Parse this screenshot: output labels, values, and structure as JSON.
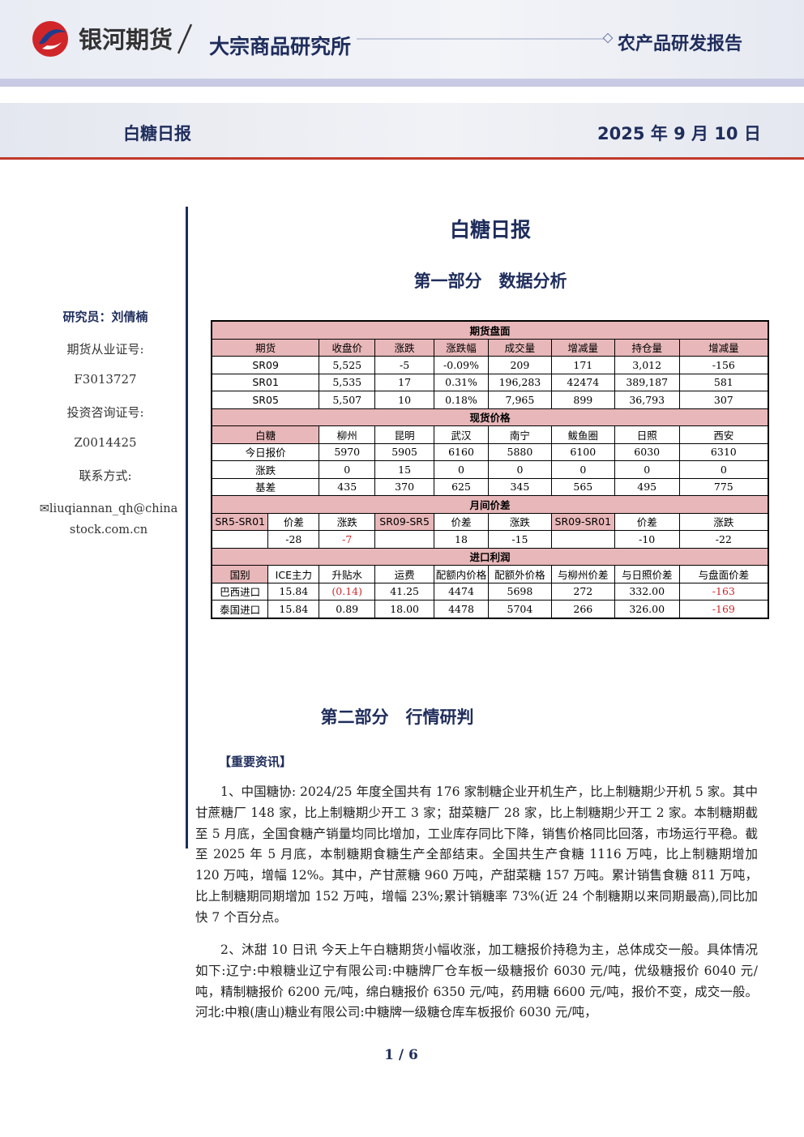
{
  "header": {
    "company": "银河期货",
    "institute": "大宗商品研究所",
    "report_type": "农产品研发报告",
    "report_name": "白糖日报",
    "date": "2025 年 9 月 10 日"
  },
  "sidebar": {
    "researcher": "研究员：刘倩楠",
    "futures_license_label": "期货从业证号:",
    "futures_license": "F3013727",
    "consult_license_label": "投资咨询证号:",
    "consult_license": "Z0014425",
    "contact_label": "联系方式:",
    "email": "liuqiannan_qh@chinastock.com.cn"
  },
  "main": {
    "title": "白糖日报",
    "part1": "第一部分　数据分析",
    "part2": "第二部分　行情研判",
    "news_header": "【重要资讯】",
    "paragraphs": [
      "1、中国糖协: 2024/25 年度全国共有 176 家制糖企业开机生产，比上制糖期少开机 5 家。其中甘蔗糖厂 148 家，比上制糖期少开工 3 家；甜菜糖厂 28 家，比上制糖期少开工 2 家。本制糖期截至 5 月底，全国食糖产销量均同比增加，工业库存同比下降，销售价格同比回落，市场运行平稳。截至 2025 年 5 月底，本制糖期食糖生产全部结束。全国共生产食糖 1116 万吨，比上制糖期增加 120 万吨，增幅 12%。其中，产甘蔗糖 960 万吨，产甜菜糖 157 万吨。累计销售食糖 811 万吨，比上制糖期同期增加 152 万吨，增幅 23%;累计销糖率 73%(近 24 个制糖期以来同期最高),同比加快 7 个百分点。",
      "2、沐甜 10 日讯 今天上午白糖期货小幅收涨，加工糖报价持稳为主，总体成交一般。具体情况如下:辽宁:中粮糖业辽宁有限公司:中糖牌厂仓车板一级糖报价 6030 元/吨，优级糖报价 6040 元/吨，精制糖报价 6200 元/吨，绵白糖报价 6350 元/吨，药用糖 6600 元/吨，报价不变，成交一般。河北:中粮(唐山)糖业有限公司:中糖牌一级糖仓库车板报价 6030 元/吨，"
    ],
    "page": "1 / 6"
  },
  "table": {
    "sections": [
      {
        "title": "期货盘面",
        "rows": [
          [
            "期货",
            "收盘价",
            "涨跌",
            "涨跌幅",
            "成交量",
            "增减量",
            "持仓量",
            "增减量"
          ],
          [
            "SR09",
            "5,525",
            "-5",
            "-0.09%",
            "209",
            "171",
            "3,012",
            "-156"
          ],
          [
            "SR01",
            "5,535",
            "17",
            "0.31%",
            "196,283",
            "42474",
            "389,187",
            "581"
          ],
          [
            "SR05",
            "5,507",
            "10",
            "0.18%",
            "7,965",
            "899",
            "36,793",
            "307"
          ]
        ]
      },
      {
        "title": "现货价格",
        "rows": [
          [
            "白糖",
            "柳州",
            "昆明",
            "武汉",
            "南宁",
            "鲅鱼圈",
            "日照",
            "西安"
          ],
          [
            "今日报价",
            "5970",
            "5905",
            "6160",
            "5880",
            "6100",
            "6030",
            "6310"
          ],
          [
            "涨跌",
            "0",
            "15",
            "0",
            "0",
            "0",
            "0",
            "0"
          ],
          [
            "基差",
            "435",
            "370",
            "625",
            "345",
            "565",
            "495",
            "775"
          ]
        ]
      },
      {
        "title": "月间价差",
        "rows": [
          [
            "SR5-SR01",
            "价差",
            "涨跌",
            "SR09-SR5",
            "价差",
            "涨跌",
            "SR09-SR01",
            "价差",
            "涨跌"
          ],
          [
            null,
            "-28",
            "-7",
            null,
            "18",
            "-15",
            null,
            "-10",
            "-22"
          ]
        ]
      },
      {
        "title": "进口利润",
        "rows": [
          [
            "国别",
            "ICE主力",
            "升贴水",
            "运费",
            "配额内价格",
            "配额外价格",
            "与柳州价差",
            "与日照价差",
            "与盘面价差"
          ],
          [
            "巴西进口",
            "15.84",
            "(0.14)",
            "41.25",
            "4474",
            "5698",
            "272",
            "332.00",
            "-163"
          ],
          [
            "泰国进口",
            "15.84",
            "0.89",
            "18.00",
            "4478",
            "5704",
            "266",
            "326.00",
            "-169"
          ]
        ]
      }
    ]
  }
}
